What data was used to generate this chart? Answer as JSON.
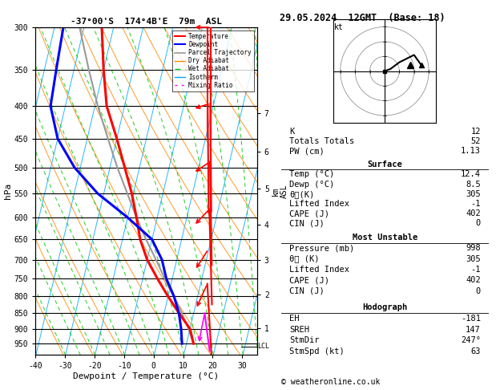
{
  "title_left": "-37°00'S  174°4B'E  79m  ASL",
  "title_right": "29.05.2024  12GMT  (Base: 18)",
  "xlabel": "Dewpoint / Temperature (°C)",
  "ylabel_left": "hPa",
  "xlim": [
    -40,
    35
  ],
  "pmin": 300,
  "pmax": 990,
  "pressure_levels": [
    300,
    350,
    400,
    450,
    500,
    550,
    600,
    650,
    700,
    750,
    800,
    850,
    900,
    950
  ],
  "temp_profile": {
    "temps": [
      12.4,
      10.0,
      5.0,
      0.0,
      -5.0,
      -10.0,
      -14.0,
      -17.0,
      -20.5,
      -25.0,
      -30.0,
      -36.0,
      -40.0,
      -44.0
    ],
    "pressures": [
      950,
      900,
      850,
      800,
      750,
      700,
      650,
      600,
      550,
      500,
      450,
      400,
      350,
      300
    ],
    "color": "#ff0000"
  },
  "dewp_profile": {
    "temps": [
      8.5,
      7.0,
      5.0,
      2.0,
      -2.0,
      -5.0,
      -10.0,
      -20.0,
      -32.0,
      -42.0,
      -50.0,
      -55.0,
      -56.0,
      -57.0
    ],
    "pressures": [
      950,
      900,
      850,
      800,
      750,
      700,
      650,
      600,
      550,
      500,
      450,
      400,
      350,
      300
    ],
    "color": "#0000ff"
  },
  "parcel_profile": {
    "temps": [
      12.4,
      9.5,
      6.0,
      2.0,
      -2.5,
      -7.0,
      -12.0,
      -17.0,
      -22.0,
      -27.5,
      -33.0,
      -39.0,
      -45.0,
      -51.5
    ],
    "pressures": [
      950,
      900,
      850,
      800,
      750,
      700,
      650,
      600,
      550,
      500,
      450,
      400,
      350,
      300
    ],
    "color": "#999999"
  },
  "lcl_pressure": 960,
  "background_color": "#ffffff",
  "isotherm_color": "#00aaff",
  "dry_adiabat_color": "#ff8800",
  "wet_adiabat_color": "#00cc00",
  "mixing_ratio_color": "#ff00ff",
  "mr_values": [
    1,
    2,
    3,
    4,
    5,
    6,
    7,
    8,
    10,
    15,
    20,
    25
  ],
  "skew": 45,
  "km_ticks": [
    1,
    2,
    3,
    4,
    5,
    6,
    7
  ],
  "stats": {
    "K": 12,
    "Totals_Totals": 52,
    "PW_cm": "1.13",
    "Surface_Temp": "12.4",
    "Surface_Dewp": "8.5",
    "Surface_ThetaE": 305,
    "Surface_LI": -1,
    "Surface_CAPE": 402,
    "Surface_CIN": 0,
    "MU_Pressure": 998,
    "MU_ThetaE": 305,
    "MU_LI": -1,
    "MU_CAPE": 402,
    "MU_CIN": 0,
    "EH": -181,
    "SREH": 147,
    "StmDir": "247°",
    "StmSpd": 63
  },
  "hodo_u": [
    0,
    8,
    20,
    40,
    50
  ],
  "hodo_v": [
    0,
    3,
    12,
    22,
    8
  ],
  "hodo_storm_u": 35,
  "hodo_storm_v": 8,
  "wind_barb_pressures": [
    300,
    400,
    500,
    600,
    700,
    800,
    900,
    960
  ],
  "wind_barb_colors": [
    "#ff0000",
    "#ff0000",
    "#ff0000",
    "#ff0000",
    "#ff0000",
    "#ff0000",
    "#ff00ff",
    "#00cccc"
  ],
  "wind_barb_speeds": [
    25,
    20,
    15,
    10,
    8,
    12,
    10,
    8
  ],
  "wind_barb_dirs": [
    270,
    260,
    250,
    240,
    230,
    220,
    200,
    190
  ]
}
